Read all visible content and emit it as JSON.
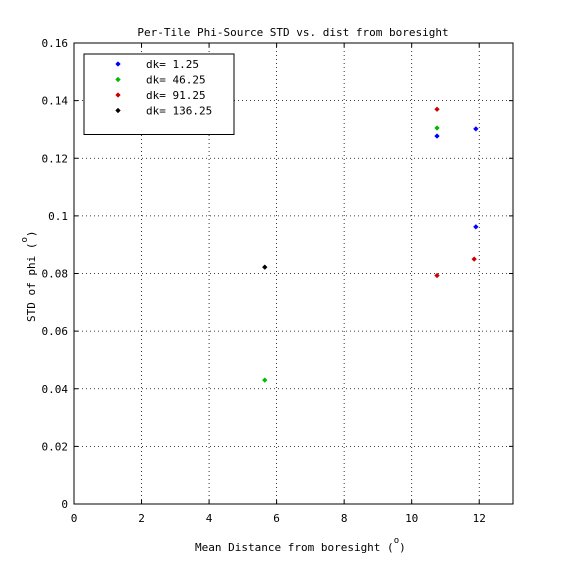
{
  "chart_data": {
    "type": "scatter",
    "title": "Per-Tile Phi-Source STD vs. dist from boresight",
    "xlabel": "Mean Distance from boresight (",
    "xlabel_sup": "o",
    "xlabel_end": ")",
    "ylabel": "STD of phi (",
    "ylabel_sup": "o",
    "ylabel_end": ")",
    "xlim": [
      0,
      13
    ],
    "ylim": [
      0,
      0.16
    ],
    "x_ticks": [
      0,
      2,
      4,
      6,
      8,
      10,
      12
    ],
    "x_tick_labels": [
      "0",
      "2",
      "4",
      "6",
      "8",
      "10",
      "12"
    ],
    "y_ticks": [
      0,
      0.02,
      0.04,
      0.06,
      0.08,
      0.1,
      0.12,
      0.14,
      0.16
    ],
    "y_tick_labels": [
      "0",
      "0.02",
      "0.04",
      "0.06",
      "0.08",
      "0.1",
      "0.12",
      "0.14",
      "0.16"
    ],
    "grid": true,
    "grid_style": "dotted",
    "legend_position": "top-left",
    "series": [
      {
        "name": "dk= 1.25",
        "color": "#0000ff",
        "points": [
          [
            10.75,
            0.1277
          ],
          [
            11.9,
            0.1302
          ],
          [
            11.9,
            0.0962
          ]
        ]
      },
      {
        "name": "dk= 46.25",
        "color": "#00bb00",
        "points": [
          [
            5.65,
            0.043
          ],
          [
            10.75,
            0.1305
          ]
        ]
      },
      {
        "name": "dk= 91.25",
        "color": "#cc0000",
        "points": [
          [
            10.75,
            0.137
          ],
          [
            10.75,
            0.0793
          ],
          [
            11.85,
            0.085
          ]
        ]
      },
      {
        "name": "dk= 136.25",
        "color": "#000000",
        "points": [
          [
            5.65,
            0.0822
          ]
        ]
      }
    ]
  }
}
